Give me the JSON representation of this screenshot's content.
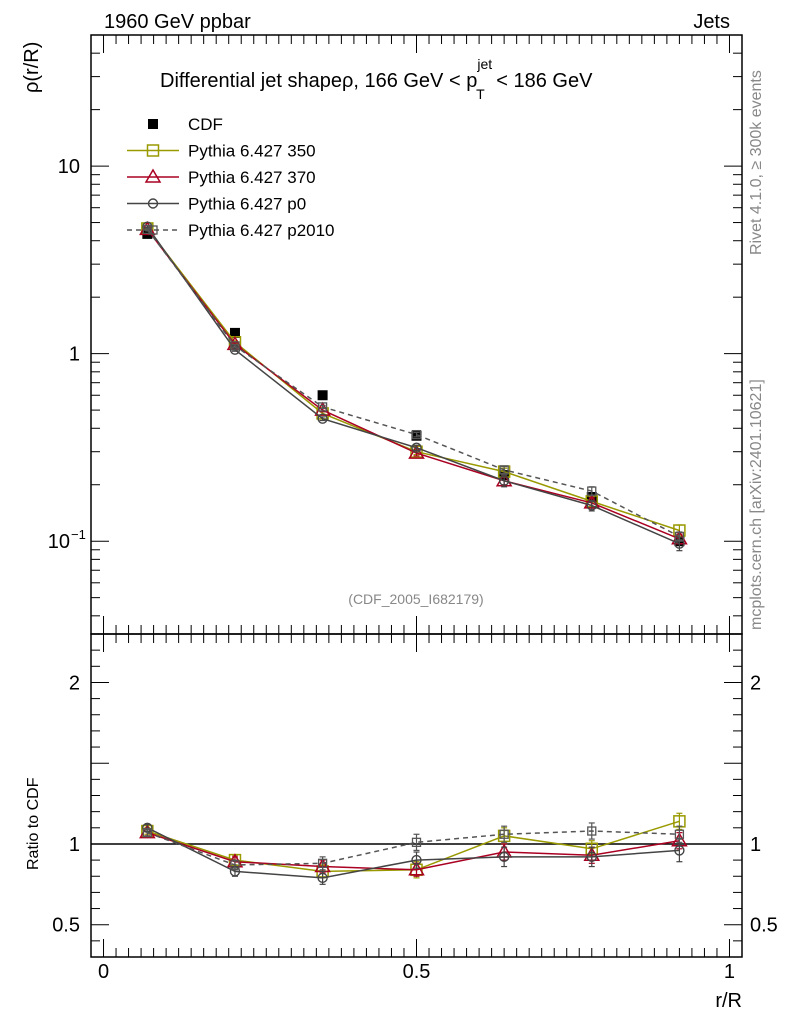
{
  "header": {
    "left": "1960 GeV ppbar",
    "right": "Jets"
  },
  "side_labels": {
    "rivet": "Rivet 4.1.0, ≥ 300k events",
    "mcplots": "mcplots.cern.ch [arXiv:2401.10621]"
  },
  "analysis_id": "(CDF_2005_I682179)",
  "title": {
    "prefix": "Differential jet shapeρ, 166 GeV < p",
    "superscript": "jet",
    "subscript": "T",
    "suffix": " < 186 GeV"
  },
  "colors": {
    "cdf": "#000000",
    "p350": "#999900",
    "p370": "#aa0022",
    "p0": "#444444",
    "p2010": "#555555"
  },
  "chart_data": [
    {
      "type": "line",
      "panel": "main",
      "ylabel": "ρ(r/R)",
      "yscale": "log",
      "xlim": [
        -0.02,
        1.02
      ],
      "ylim": [
        0.032,
        50
      ],
      "y_ticks": [
        {
          "value": 10,
          "label": "10"
        },
        {
          "value": 1,
          "label": "1"
        },
        {
          "value": 0.1,
          "label": "10",
          "exponent": "−1"
        }
      ],
      "x": [
        0.07,
        0.21,
        0.35,
        0.5,
        0.64,
        0.78,
        0.92
      ],
      "series": [
        {
          "key": "cdf",
          "name": "CDF",
          "values": [
            4.35,
            1.29,
            0.6,
            0.365,
            0.225,
            0.172,
            0.1
          ],
          "marker": "filled-square",
          "line": "none"
        },
        {
          "key": "p350",
          "name": "Pythia 6.427 350",
          "values": [
            4.65,
            1.15,
            0.48,
            0.3,
            0.235,
            0.163,
            0.114
          ],
          "errors": [
            0.05,
            0.02,
            0.01,
            0.01,
            0.01,
            0.01,
            0.008
          ],
          "marker": "open-square",
          "line": "solid"
        },
        {
          "key": "p370",
          "name": "Pythia 6.427 370",
          "values": [
            4.6,
            1.12,
            0.5,
            0.295,
            0.21,
            0.16,
            0.103
          ],
          "errors": [
            0.05,
            0.02,
            0.01,
            0.01,
            0.01,
            0.01,
            0.006
          ],
          "marker": "open-triangle",
          "line": "solid"
        },
        {
          "key": "p0",
          "name": "Pythia 6.427 p0",
          "values": [
            4.75,
            1.05,
            0.45,
            0.315,
            0.21,
            0.155,
            0.097
          ],
          "errors": [
            0.05,
            0.02,
            0.01,
            0.01,
            0.015,
            0.01,
            0.008
          ],
          "marker": "open-circle",
          "line": "solid"
        },
        {
          "key": "p2010",
          "name": "Pythia 6.427 p2010",
          "values": [
            4.6,
            1.1,
            0.52,
            0.37,
            0.24,
            0.185,
            0.106
          ],
          "errors": [
            0.05,
            0.02,
            0.01,
            0.01,
            0.01,
            0.01,
            0.006
          ],
          "marker": "open-square-small",
          "line": "dashed"
        }
      ]
    },
    {
      "type": "line",
      "panel": "ratio",
      "ylabel": "Ratio to CDF",
      "xlabel": "r/R",
      "xlim": [
        -0.02,
        1.02
      ],
      "ylim": [
        0.3,
        2.3
      ],
      "y_ticks": [
        {
          "value": 2,
          "label": "2"
        },
        {
          "value": 1,
          "label": "1"
        },
        {
          "value": 0.5,
          "label": "0.5"
        }
      ],
      "x_ticks": [
        {
          "value": 0,
          "label": "0"
        },
        {
          "value": 0.5,
          "label": "0.5"
        },
        {
          "value": 1,
          "label": "1"
        }
      ],
      "x": [
        0.07,
        0.21,
        0.35,
        0.5,
        0.64,
        0.78,
        0.92
      ],
      "series": [
        {
          "key": "p350",
          "name": "Pythia 6.427 350",
          "values": [
            1.08,
            0.9,
            0.83,
            0.84,
            1.05,
            0.97,
            1.14
          ],
          "errors": [
            0.02,
            0.03,
            0.04,
            0.05,
            0.05,
            0.05,
            0.05
          ]
        },
        {
          "key": "p370",
          "name": "Pythia 6.427 370",
          "values": [
            1.07,
            0.89,
            0.86,
            0.84,
            0.95,
            0.93,
            1.02
          ],
          "errors": [
            0.02,
            0.03,
            0.04,
            0.04,
            0.05,
            0.05,
            0.05
          ]
        },
        {
          "key": "p0",
          "name": "Pythia 6.427 p0",
          "values": [
            1.1,
            0.83,
            0.79,
            0.9,
            0.92,
            0.92,
            0.96
          ],
          "errors": [
            0.02,
            0.03,
            0.04,
            0.05,
            0.06,
            0.06,
            0.07
          ]
        },
        {
          "key": "p2010",
          "name": "Pythia 6.427 p2010",
          "values": [
            1.07,
            0.87,
            0.88,
            1.01,
            1.06,
            1.08,
            1.06
          ],
          "errors": [
            0.02,
            0.03,
            0.04,
            0.05,
            0.05,
            0.05,
            0.05
          ]
        }
      ]
    }
  ]
}
